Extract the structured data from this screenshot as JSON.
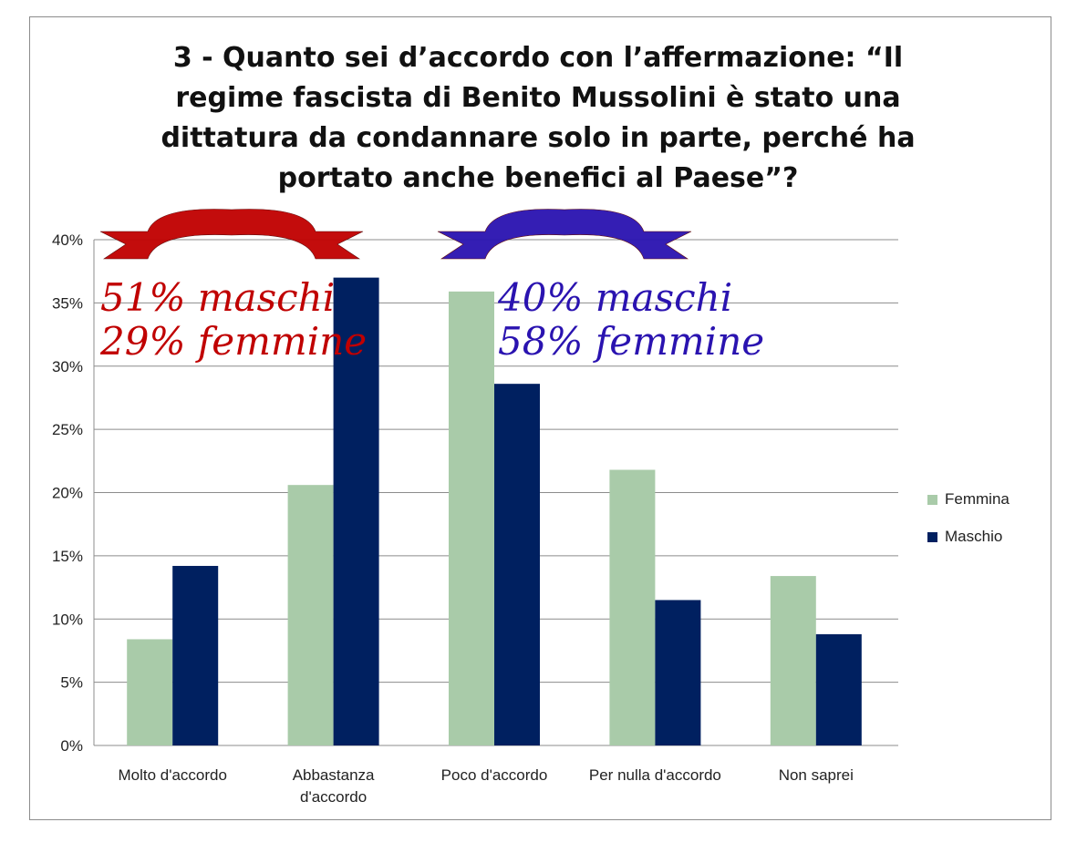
{
  "chart_data": {
    "type": "bar",
    "title": "3 - Quanto sei d’accordo con l’affermazione: “Il regime fascista di Benito Mussolini è stato una dittatura da condannare solo in parte, perché ha portato anche benefici al Paese”?",
    "categories": [
      "Molto d'accordo",
      "Abbastanza d'accordo",
      "Poco d'accordo",
      "Per nulla d'accordo",
      "Non saprei"
    ],
    "series": [
      {
        "name": "Femmina",
        "values": [
          8.4,
          20.6,
          35.9,
          21.8,
          13.4
        ],
        "color": "#a9cba9"
      },
      {
        "name": "Maschio",
        "values": [
          14.2,
          37.0,
          28.6,
          11.5,
          8.8
        ],
        "color": "#002060"
      }
    ],
    "y_ticks": [
      "0%",
      "5%",
      "10%",
      "15%",
      "20%",
      "25%",
      "30%",
      "35%",
      "40%"
    ],
    "ylim": [
      0,
      40
    ],
    "grid": true,
    "legend_position": "right",
    "annotations": [
      {
        "text": "51% maschi\n29% femmine",
        "color": "#c00000",
        "banner_color": "#c00000"
      },
      {
        "text": "40% maschi\n58% femmine",
        "color": "#2a13b0",
        "banner_color": "#2a13b0"
      }
    ]
  }
}
